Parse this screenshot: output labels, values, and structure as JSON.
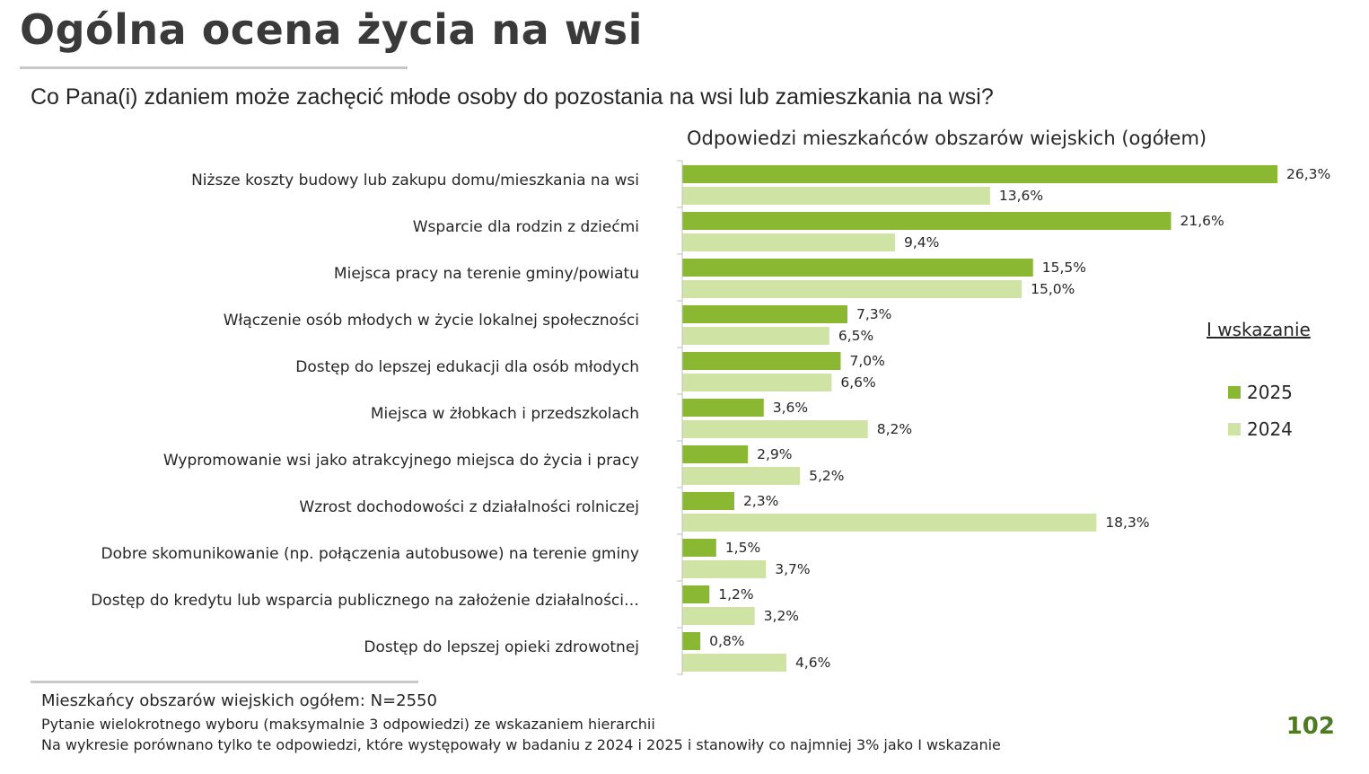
{
  "page": {
    "title": "Ogólna ocena życia na wsi",
    "question": "Co Pana(i) zdaniem może zachęcić młode osoby do pozostania na wsi lub zamieszkania na wsi?",
    "page_number": "102"
  },
  "footnotes": {
    "sample": "Mieszkańcy obszarów wiejskich ogółem: N=2550",
    "question_type": "Pytanie wielokrotnego wyboru (maksymalnie 3 odpowiedzi) ze wskazaniem hierarchii",
    "comparison_note": "Na wykresie porównano tylko te odpowiedzi, które występowały w badaniu z 2024 i 2025 i stanowiły co najmniej 3% jako I wskazanie"
  },
  "legend": {
    "title": "I wskazanie",
    "items": [
      {
        "label": "2025",
        "color": "#8ab833"
      },
      {
        "label": "2024",
        "color": "#cfe3a4"
      }
    ]
  },
  "chart_data": {
    "type": "bar",
    "orientation": "horizontal",
    "title": "Odpowiedzi mieszkańców obszarów wiejskich (ogółem)",
    "xlabel": "",
    "ylabel": "",
    "xlim": [
      0,
      26.3
    ],
    "value_suffix": "%",
    "decimal_separator": ",",
    "categories": [
      "Niższe koszty budowy lub zakupu domu/mieszkania na wsi",
      "Wsparcie dla rodzin z dziećmi",
      "Miejsca pracy na terenie gminy/powiatu",
      "Włączenie osób młodych w życie lokalnej społeczności",
      "Dostęp do lepszej edukacji dla osób młodych",
      "Miejsca w żłobkach i przedszkolach",
      "Wypromowanie wsi jako atrakcyjnego miejsca do życia i pracy",
      "Wzrost dochodowości z działalności rolniczej",
      "Dobre skomunikowanie (np. połączenia autobusowe) na terenie gminy",
      "Dostęp do kredytu lub wsparcia publicznego na założenie działalności…",
      "Dostęp do lepszej opieki zdrowotnej"
    ],
    "series": [
      {
        "name": "2025",
        "color": "#8ab833",
        "values": [
          26.3,
          21.6,
          15.5,
          7.3,
          7.0,
          3.6,
          2.9,
          2.3,
          1.5,
          1.2,
          0.8
        ]
      },
      {
        "name": "2024",
        "color": "#cfe3a4",
        "values": [
          13.6,
          9.4,
          15.0,
          6.5,
          6.6,
          8.2,
          5.2,
          18.3,
          3.7,
          3.2,
          4.6
        ]
      }
    ]
  }
}
